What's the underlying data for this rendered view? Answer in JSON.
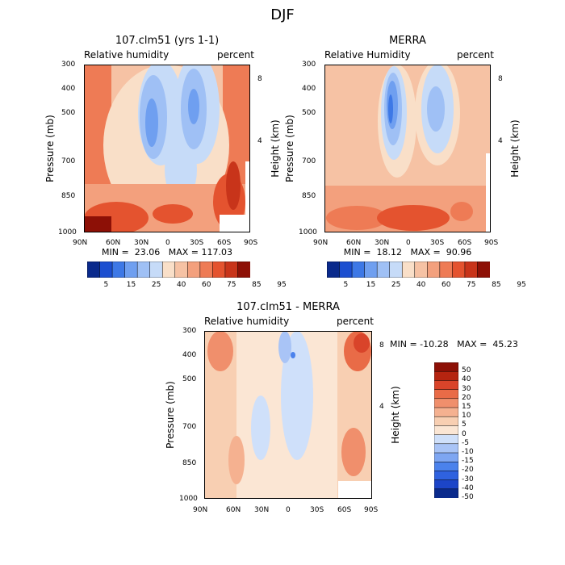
{
  "supertitle": "DJF",
  "palette_abs": [
    "#0a2a8c",
    "#1c4fd0",
    "#3d78e6",
    "#6f9ff0",
    "#9fc0f5",
    "#c6dbf8",
    "#f9dfc8",
    "#f6c2a4",
    "#f3a07d",
    "#ee7b55",
    "#e4532f",
    "#c8341a",
    "#8d1006"
  ],
  "palette_diff": [
    "#0a2a8c",
    "#1c45c8",
    "#2f62df",
    "#4b82ec",
    "#7ea6f2",
    "#a9c4f6",
    "#cfe0fa",
    "#fbe6d4",
    "#f8cfb2",
    "#f5b190",
    "#f08f6c",
    "#e96b47",
    "#d9442a",
    "#b52410",
    "#8d1006"
  ],
  "chart_data": [
    {
      "type": "heatmap",
      "title": "107.clm51 (yrs 1-1)",
      "variable": "Relative humidity",
      "units": "percent",
      "xlabel": "",
      "ylabel": "Pressure (mb)",
      "ylabel_right": "Height (km)",
      "x_ticks": [
        "90N",
        "60N",
        "30N",
        "0",
        "30S",
        "60S",
        "90S"
      ],
      "y_ticks": [
        "300",
        "400",
        "500",
        "700",
        "850",
        "1000"
      ],
      "height_ticks": [
        "8",
        "4"
      ],
      "min_label": "MIN =  23.06",
      "max_label": "MAX = 117.03",
      "colorbar_labels": [
        "5",
        "15",
        "25",
        "40",
        "60",
        "75",
        "85",
        "95"
      ],
      "levels": [
        5,
        10,
        15,
        20,
        25,
        30,
        40,
        50,
        60,
        70,
        75,
        80,
        85,
        90,
        95
      ],
      "min": 23.06,
      "max": 117.03
    },
    {
      "type": "heatmap",
      "title": "MERRA",
      "variable": "Relative Humidity",
      "units": "percent",
      "xlabel": "",
      "ylabel": "Pressure (mb)",
      "ylabel_right": "Height (km)",
      "x_ticks": [
        "90N",
        "60N",
        "30N",
        "0",
        "30S",
        "60S",
        "90S"
      ],
      "y_ticks": [
        "300",
        "400",
        "500",
        "700",
        "850",
        "1000"
      ],
      "height_ticks": [
        "8",
        "4"
      ],
      "min_label": "MIN =  18.12",
      "max_label": "MAX =  90.96",
      "colorbar_labels": [
        "5",
        "15",
        "25",
        "40",
        "60",
        "75",
        "85",
        "95"
      ],
      "min": 18.12,
      "max": 90.96
    },
    {
      "type": "heatmap",
      "title": "107.clm51 - MERRA",
      "variable": "Relative humidity",
      "units": "percent",
      "xlabel": "",
      "ylabel": "Pressure (mb)",
      "ylabel_right": "Height (km)",
      "x_ticks": [
        "90N",
        "60N",
        "30N",
        "0",
        "30S",
        "60S",
        "90S"
      ],
      "y_ticks": [
        "300",
        "400",
        "500",
        "700",
        "850",
        "1000"
      ],
      "height_ticks": [
        "8",
        "4"
      ],
      "minmax_label": "MIN = -10.28   MAX =  45.23",
      "colorbar_labels": [
        "50",
        "40",
        "30",
        "20",
        "15",
        "10",
        "5",
        "0",
        "-5",
        "-10",
        "-15",
        "-20",
        "-30",
        "-40",
        "-50"
      ],
      "min": -10.28,
      "max": 45.23
    }
  ]
}
